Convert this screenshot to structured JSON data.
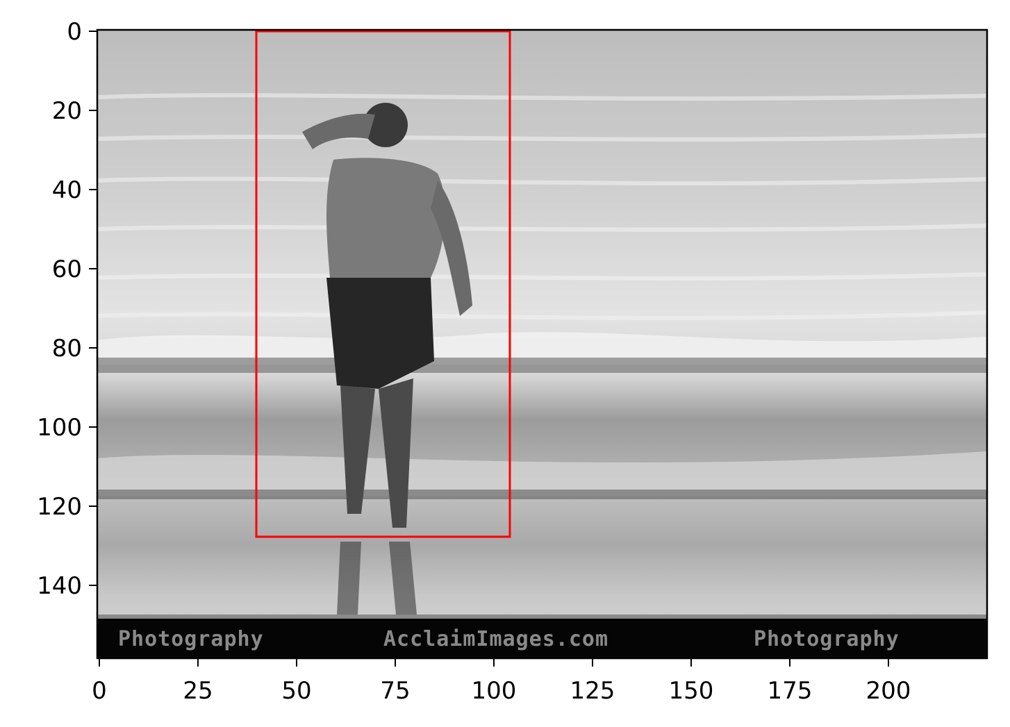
{
  "image": {
    "description_free": true,
    "watermark": {
      "left_text": "Photography",
      "center_text": "AcclaimImages.com",
      "right_text": "Photography"
    }
  },
  "axes": {
    "x_ticks": [
      "0",
      "25",
      "50",
      "75",
      "100",
      "125",
      "150",
      "175",
      "200"
    ],
    "y_ticks": [
      "0",
      "20",
      "40",
      "60",
      "80",
      "100",
      "120",
      "140"
    ],
    "x_range": [
      0,
      225
    ],
    "y_range": [
      158,
      0
    ]
  },
  "annotation": {
    "box_color": "#ff0000",
    "box_data": {
      "x0": 40,
      "y0": 0,
      "x1": 104,
      "y1": 128
    }
  }
}
